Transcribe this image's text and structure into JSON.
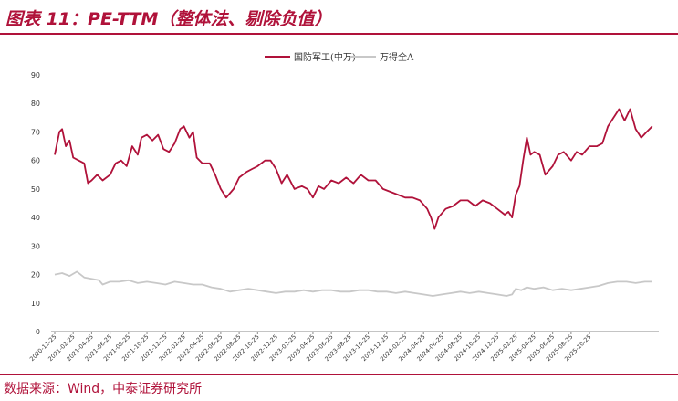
{
  "header": {
    "title": "图表 11：PE-TTM（整体法、剔除负值）"
  },
  "footer": {
    "source": "数据来源：Wind，中泰证券研究所"
  },
  "colors": {
    "accent": "#b0123a",
    "series_primary": "#b0123a",
    "series_secondary": "#c8c8c8"
  },
  "chart_data": {
    "type": "line",
    "title": "",
    "xlabel": "",
    "ylabel": "",
    "ylim": [
      0,
      90
    ],
    "yticks": [
      0,
      10,
      20,
      30,
      40,
      50,
      60,
      70,
      80,
      90
    ],
    "legend_position": "top-center",
    "grid": false,
    "x": [
      "2020-12-25",
      "2021-02-25",
      "2021-04-25",
      "2021-06-25",
      "2021-08-25",
      "2021-10-25",
      "2021-12-25",
      "2022-02-25",
      "2022-04-25",
      "2022-06-25",
      "2022-08-25",
      "2022-10-25",
      "2022-12-25",
      "2023-02-25",
      "2023-04-25",
      "2023-06-25",
      "2023-08-25",
      "2023-10-25",
      "2023-12-25",
      "2024-02-25",
      "2024-04-25",
      "2024-06-25",
      "2024-08-25",
      "2024-10-25",
      "2024-12-25",
      "2025-02-25",
      "2025-04-25",
      "2025-06-25",
      "2025-08-25",
      "2025-10-25"
    ],
    "series": [
      {
        "name": "国防军工(中万)",
        "color": "#b0123a",
        "points": [
          [
            0,
            62
          ],
          [
            0.25,
            70
          ],
          [
            0.4,
            71
          ],
          [
            0.6,
            65
          ],
          [
            0.8,
            67
          ],
          [
            1.0,
            61
          ],
          [
            1.3,
            60
          ],
          [
            1.6,
            59
          ],
          [
            1.8,
            52
          ],
          [
            2.0,
            53
          ],
          [
            2.3,
            55
          ],
          [
            2.6,
            53
          ],
          [
            3.0,
            55
          ],
          [
            3.3,
            59
          ],
          [
            3.6,
            60
          ],
          [
            3.9,
            58
          ],
          [
            4.2,
            65
          ],
          [
            4.5,
            62
          ],
          [
            4.7,
            68
          ],
          [
            5.0,
            69
          ],
          [
            5.3,
            67
          ],
          [
            5.6,
            69
          ],
          [
            5.9,
            64
          ],
          [
            6.2,
            63
          ],
          [
            6.5,
            66
          ],
          [
            6.8,
            71
          ],
          [
            7.0,
            72
          ],
          [
            7.3,
            68
          ],
          [
            7.5,
            70
          ],
          [
            7.7,
            61
          ],
          [
            8.0,
            59
          ],
          [
            8.4,
            59
          ],
          [
            8.7,
            55
          ],
          [
            9.0,
            50
          ],
          [
            9.3,
            47
          ],
          [
            9.7,
            50
          ],
          [
            10.0,
            54
          ],
          [
            10.4,
            56
          ],
          [
            10.7,
            57
          ],
          [
            11.0,
            58
          ],
          [
            11.4,
            60
          ],
          [
            11.7,
            60
          ],
          [
            12.0,
            57
          ],
          [
            12.3,
            52
          ],
          [
            12.6,
            55
          ],
          [
            13.0,
            50
          ],
          [
            13.4,
            51
          ],
          [
            13.7,
            50
          ],
          [
            14.0,
            47
          ],
          [
            14.3,
            51
          ],
          [
            14.6,
            50
          ],
          [
            15.0,
            53
          ],
          [
            15.4,
            52
          ],
          [
            15.8,
            54
          ],
          [
            16.2,
            52
          ],
          [
            16.6,
            55
          ],
          [
            17.0,
            53
          ],
          [
            17.4,
            53
          ],
          [
            17.8,
            50
          ],
          [
            18.2,
            49
          ],
          [
            18.6,
            48
          ],
          [
            19.0,
            47
          ],
          [
            19.4,
            47
          ],
          [
            19.8,
            46
          ],
          [
            20.2,
            43
          ],
          [
            20.4,
            40
          ],
          [
            20.6,
            36
          ],
          [
            20.8,
            40
          ],
          [
            21.2,
            43
          ],
          [
            21.6,
            44
          ],
          [
            22.0,
            46
          ],
          [
            22.4,
            46
          ],
          [
            22.8,
            44
          ],
          [
            23.2,
            46
          ],
          [
            23.6,
            45
          ],
          [
            24.0,
            43
          ],
          [
            24.4,
            41
          ],
          [
            24.6,
            42
          ],
          [
            24.8,
            40
          ],
          [
            25.0,
            48
          ],
          [
            25.2,
            51
          ],
          [
            25.4,
            60
          ],
          [
            25.6,
            68
          ],
          [
            25.8,
            62
          ],
          [
            26.0,
            63
          ],
          [
            26.3,
            62
          ],
          [
            26.6,
            55
          ],
          [
            27.0,
            58
          ],
          [
            27.3,
            62
          ],
          [
            27.6,
            63
          ],
          [
            28.0,
            60
          ],
          [
            28.3,
            63
          ],
          [
            28.6,
            62
          ],
          [
            29.0,
            65
          ],
          [
            29.4,
            65
          ],
          [
            29.7,
            66
          ],
          [
            30.0,
            72
          ],
          [
            30.3,
            75
          ],
          [
            30.6,
            78
          ],
          [
            30.9,
            74
          ],
          [
            31.2,
            78
          ],
          [
            31.5,
            71
          ],
          [
            31.8,
            68
          ],
          [
            32.1,
            70
          ],
          [
            32.4,
            72
          ]
        ]
      },
      {
        "name": "万得全A",
        "color": "#c8c8c8",
        "points": [
          [
            0,
            20
          ],
          [
            0.4,
            20.5
          ],
          [
            0.8,
            19.5
          ],
          [
            1.2,
            21
          ],
          [
            1.6,
            19
          ],
          [
            2.0,
            18.5
          ],
          [
            2.4,
            18
          ],
          [
            2.6,
            16.5
          ],
          [
            3.0,
            17.5
          ],
          [
            3.5,
            17.5
          ],
          [
            4.0,
            18
          ],
          [
            4.5,
            17
          ],
          [
            5.0,
            17.5
          ],
          [
            5.5,
            17
          ],
          [
            6.0,
            16.5
          ],
          [
            6.5,
            17.5
          ],
          [
            7.0,
            17
          ],
          [
            7.5,
            16.5
          ],
          [
            8.0,
            16.5
          ],
          [
            8.5,
            15.5
          ],
          [
            9.0,
            15
          ],
          [
            9.5,
            14
          ],
          [
            10.0,
            14.5
          ],
          [
            10.5,
            15
          ],
          [
            11.0,
            14.5
          ],
          [
            11.5,
            14
          ],
          [
            12.0,
            13.5
          ],
          [
            12.5,
            14
          ],
          [
            13.0,
            14
          ],
          [
            13.5,
            14.5
          ],
          [
            14.0,
            14
          ],
          [
            14.5,
            14.5
          ],
          [
            15.0,
            14.5
          ],
          [
            15.5,
            14
          ],
          [
            16.0,
            14
          ],
          [
            16.5,
            14.5
          ],
          [
            17.0,
            14.5
          ],
          [
            17.5,
            14
          ],
          [
            18.0,
            14
          ],
          [
            18.5,
            13.5
          ],
          [
            19.0,
            14
          ],
          [
            19.5,
            13.5
          ],
          [
            20.0,
            13
          ],
          [
            20.5,
            12.5
          ],
          [
            21.0,
            13
          ],
          [
            21.5,
            13.5
          ],
          [
            22.0,
            14
          ],
          [
            22.5,
            13.5
          ],
          [
            23.0,
            14
          ],
          [
            23.5,
            13.5
          ],
          [
            24.0,
            13
          ],
          [
            24.5,
            12.5
          ],
          [
            24.8,
            13
          ],
          [
            25.0,
            15
          ],
          [
            25.3,
            14.5
          ],
          [
            25.6,
            15.5
          ],
          [
            26.0,
            15
          ],
          [
            26.5,
            15.5
          ],
          [
            27.0,
            14.5
          ],
          [
            27.5,
            15
          ],
          [
            28.0,
            14.5
          ],
          [
            28.5,
            15
          ],
          [
            29.0,
            15.5
          ],
          [
            29.5,
            16
          ],
          [
            30.0,
            17
          ],
          [
            30.5,
            17.5
          ],
          [
            31.0,
            17.5
          ],
          [
            31.5,
            17
          ],
          [
            32.0,
            17.5
          ],
          [
            32.4,
            17.5
          ]
        ]
      }
    ]
  }
}
